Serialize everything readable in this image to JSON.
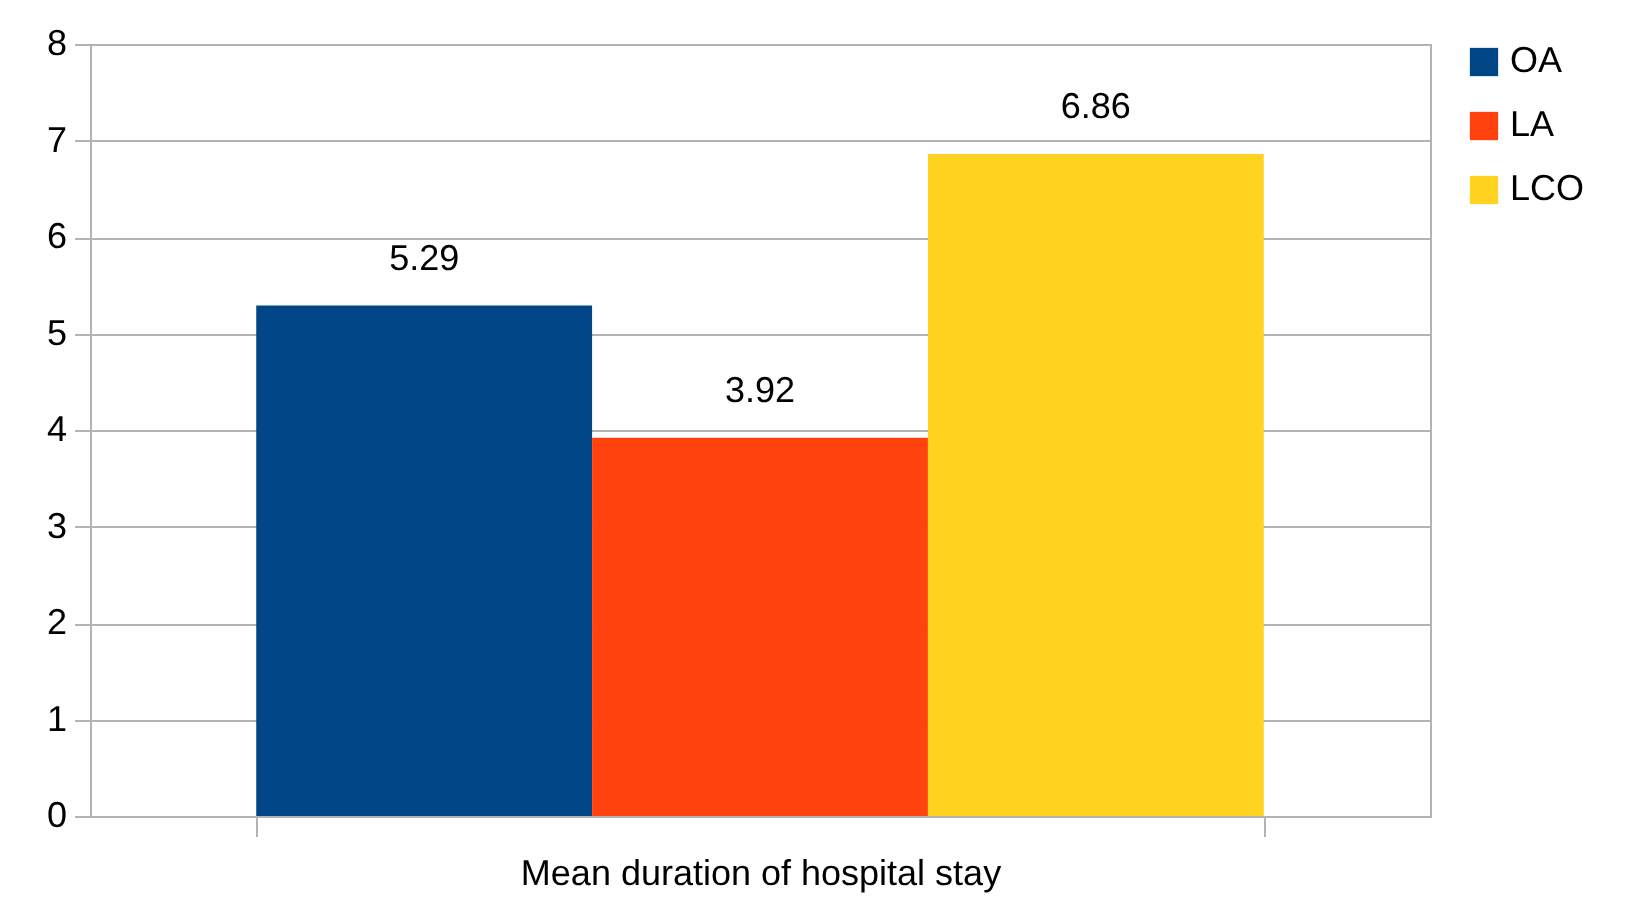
{
  "chart_data": {
    "type": "bar",
    "categories": [
      "Mean duration of hospital stay"
    ],
    "series": [
      {
        "name": "OA",
        "color": "#004586",
        "values": [
          5.29
        ]
      },
      {
        "name": "LA",
        "color": "#ff420e",
        "values": [
          3.92
        ]
      },
      {
        "name": "LCO",
        "color": "#ffd320",
        "values": [
          6.86
        ]
      }
    ],
    "ylim": [
      0,
      8
    ],
    "yticks": [
      0,
      1,
      2,
      3,
      4,
      5,
      6,
      7,
      8
    ],
    "grid": "y",
    "legend": "right",
    "data_labels": true
  }
}
